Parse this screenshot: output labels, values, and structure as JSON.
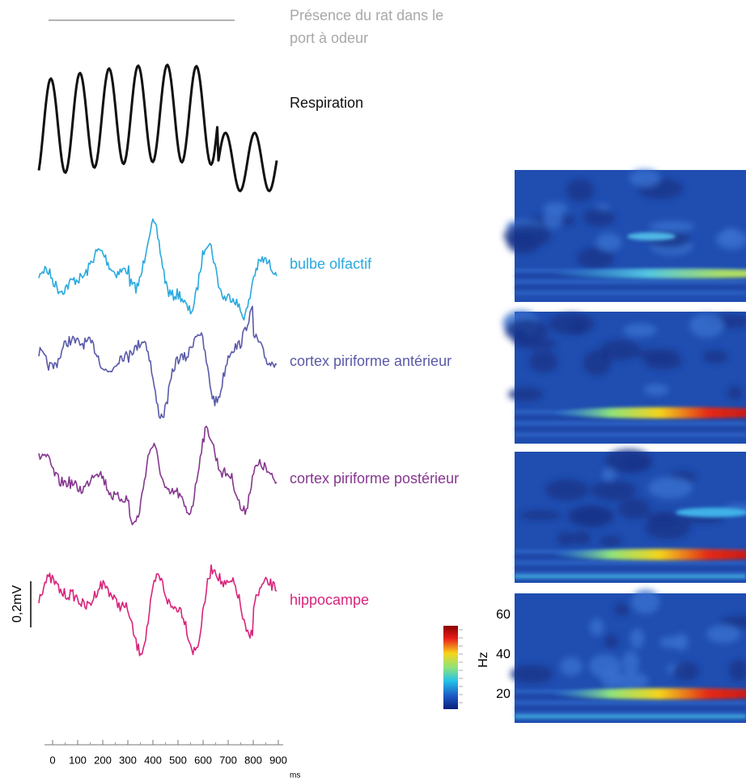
{
  "presence_label": [
    "Présence du rat dans le",
    "port à odeur"
  ],
  "traces": [
    {
      "label": "Respiration",
      "color": "#111111"
    },
    {
      "label": "bulbe olfactif",
      "color": "#29a9df"
    },
    {
      "label": "cortex piriforme antérieur",
      "color": "#5a5aa8"
    },
    {
      "label": "cortex piriforme postérieur",
      "color": "#86378f"
    },
    {
      "label": "hippocampe",
      "color": "#d8247c"
    }
  ],
  "scale_bar": "0,2mV",
  "time_axis": {
    "ticks": [
      0,
      100,
      200,
      300,
      400,
      500,
      600,
      700,
      800,
      900
    ],
    "unit": "ms"
  },
  "frequency_axis": {
    "ticks": [
      60,
      40,
      20
    ],
    "unit": "Hz"
  }
}
